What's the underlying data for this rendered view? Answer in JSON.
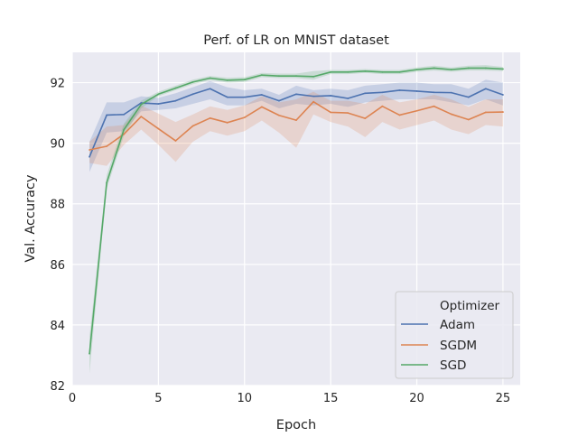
{
  "chart_data": {
    "type": "line",
    "title": "Perf. of LR on MNIST dataset",
    "xlabel": "Epoch",
    "ylabel": "Val. Accuracy",
    "xlim": [
      0,
      26
    ],
    "ylim": [
      82,
      93
    ],
    "xticks": [
      0,
      5,
      10,
      15,
      20,
      25
    ],
    "yticks": [
      82,
      84,
      86,
      88,
      90,
      92
    ],
    "grid": true,
    "legend": {
      "title": "Optimizer",
      "placement": "lower-right"
    },
    "x": [
      1,
      2,
      3,
      4,
      5,
      6,
      7,
      8,
      9,
      10,
      11,
      12,
      13,
      14,
      15,
      16,
      17,
      18,
      19,
      20,
      21,
      22,
      23,
      24,
      25
    ],
    "series": [
      {
        "name": "Adam",
        "color": "#4c72b0",
        "values": [
          89.55,
          90.93,
          90.95,
          91.33,
          91.3,
          91.4,
          91.62,
          91.8,
          91.52,
          91.52,
          91.6,
          91.4,
          91.62,
          91.55,
          91.57,
          91.48,
          91.65,
          91.68,
          91.75,
          91.72,
          91.68,
          91.67,
          91.52,
          91.8,
          91.6
        ],
        "lower": [
          89.05,
          90.35,
          90.4,
          91.05,
          91.1,
          91.15,
          91.3,
          91.45,
          91.25,
          91.25,
          91.4,
          91.15,
          91.3,
          91.25,
          91.3,
          91.2,
          91.35,
          91.4,
          91.45,
          91.45,
          91.45,
          91.35,
          91.25,
          91.45,
          91.25
        ],
        "upper": [
          90.05,
          91.35,
          91.35,
          91.55,
          91.5,
          91.65,
          91.85,
          92.05,
          91.85,
          91.75,
          91.8,
          91.6,
          91.9,
          91.75,
          91.8,
          91.75,
          91.9,
          91.95,
          92.0,
          92.0,
          91.95,
          91.95,
          91.8,
          92.1,
          92.0
        ]
      },
      {
        "name": "SGDM",
        "color": "#dd8452",
        "values": [
          89.78,
          89.9,
          90.3,
          90.88,
          90.48,
          90.08,
          90.57,
          90.83,
          90.68,
          90.85,
          91.2,
          90.92,
          90.76,
          91.37,
          91.02,
          91.0,
          90.82,
          91.22,
          90.93,
          91.07,
          91.22,
          90.96,
          90.78,
          91.02,
          91.03
        ],
        "lower": [
          89.35,
          89.25,
          89.95,
          90.45,
          89.95,
          89.38,
          90.05,
          90.4,
          90.25,
          90.4,
          90.75,
          90.35,
          89.85,
          90.95,
          90.7,
          90.55,
          90.2,
          90.7,
          90.45,
          90.6,
          90.75,
          90.45,
          90.3,
          90.6,
          90.55
        ],
        "upper": [
          90.05,
          90.55,
          90.6,
          91.25,
          90.98,
          90.7,
          90.95,
          91.22,
          91.1,
          91.25,
          91.55,
          91.35,
          91.45,
          91.7,
          91.4,
          91.4,
          91.3,
          91.6,
          91.35,
          91.45,
          91.6,
          91.45,
          91.2,
          91.45,
          91.45
        ]
      },
      {
        "name": "SGD",
        "color": "#55a868",
        "values": [
          83.05,
          88.7,
          90.45,
          91.28,
          91.62,
          91.82,
          92.02,
          92.15,
          92.08,
          92.1,
          92.25,
          92.22,
          92.22,
          92.2,
          92.35,
          92.35,
          92.38,
          92.35,
          92.35,
          92.43,
          92.48,
          92.43,
          92.48,
          92.48,
          92.45
        ],
        "lower": [
          82.4,
          88.5,
          90.25,
          91.15,
          91.55,
          91.75,
          91.95,
          92.08,
          92.0,
          92.02,
          92.18,
          92.15,
          92.15,
          92.1,
          92.28,
          92.28,
          92.32,
          92.28,
          92.28,
          92.36,
          92.4,
          92.36,
          92.4,
          92.4,
          92.38
        ],
        "upper": [
          83.6,
          88.95,
          90.65,
          91.4,
          91.7,
          91.9,
          92.1,
          92.22,
          92.16,
          92.18,
          92.32,
          92.3,
          92.3,
          92.38,
          92.42,
          92.42,
          92.45,
          92.42,
          92.42,
          92.5,
          92.56,
          92.5,
          92.56,
          92.58,
          92.52
        ]
      }
    ]
  }
}
